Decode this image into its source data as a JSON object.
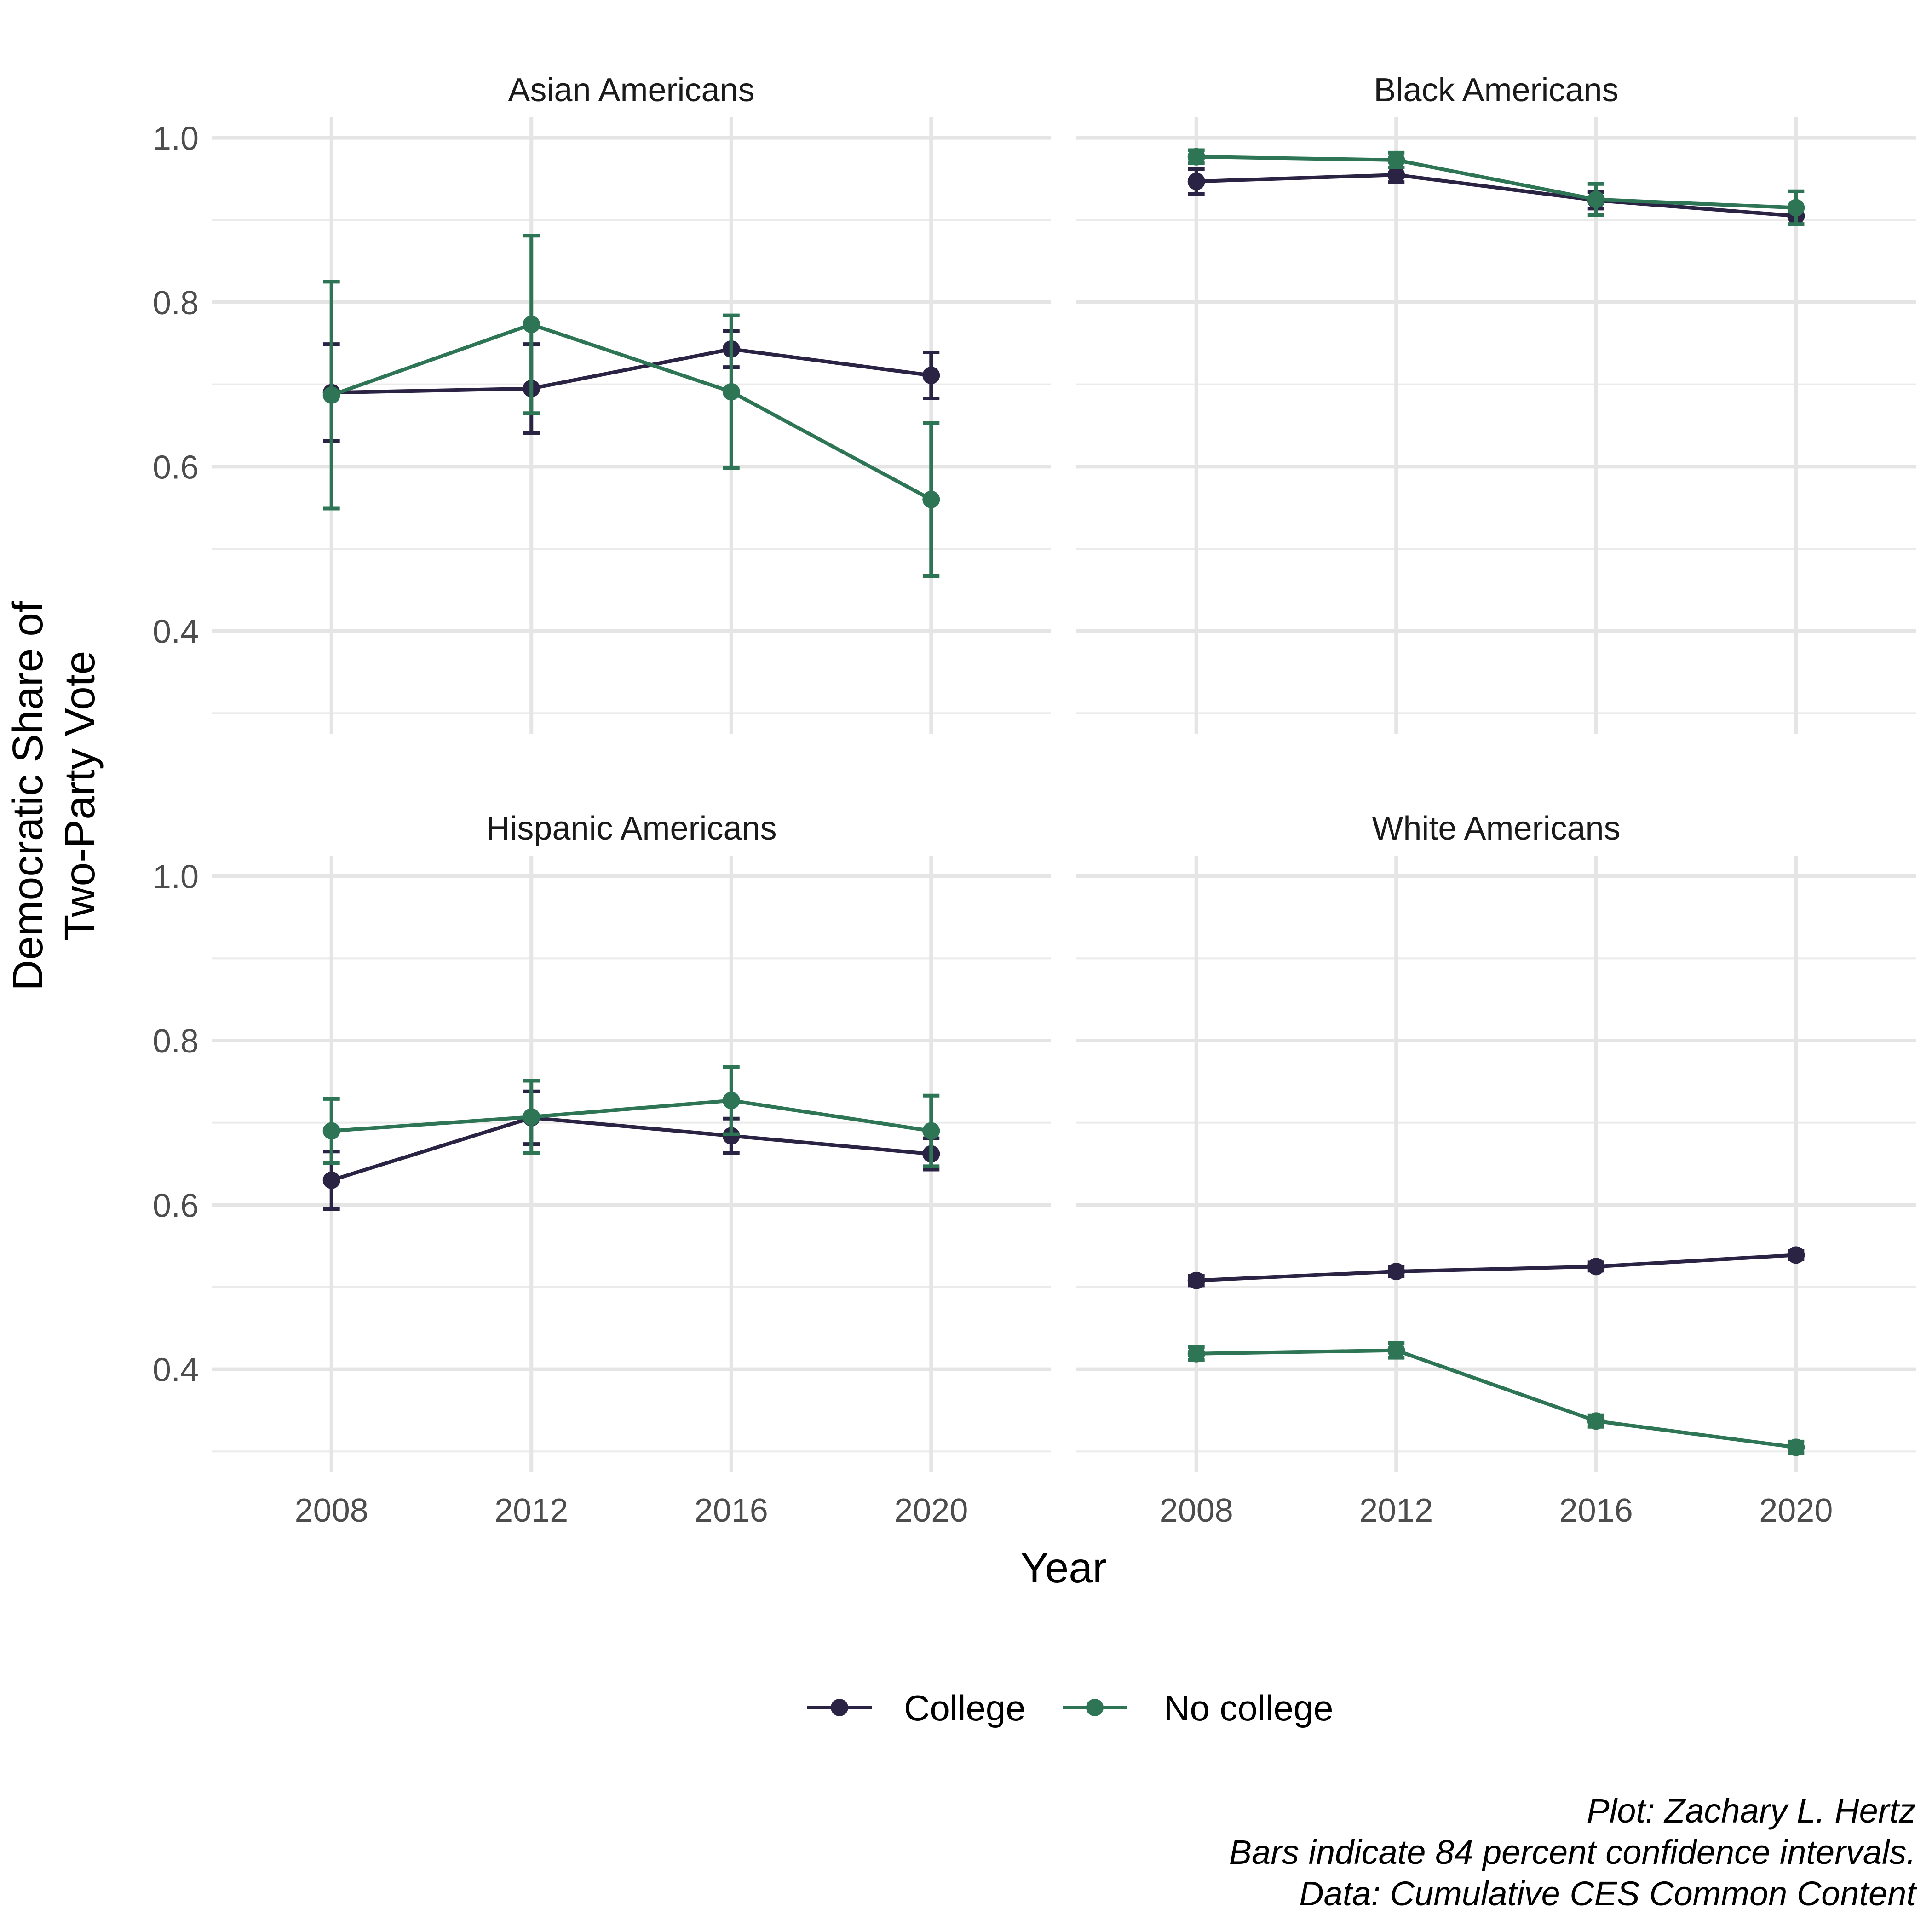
{
  "chart_data": {
    "type": "line",
    "facets": [
      "Asian Americans",
      "Black Americans",
      "Hispanic Americans",
      "White Americans"
    ],
    "x": [
      2008,
      2012,
      2016,
      2020
    ],
    "x_tick_labels": [
      "2008",
      "2012",
      "2016",
      "2020"
    ],
    "y_tick_labels": [
      "0.4",
      "0.6",
      "0.8",
      "1.0"
    ],
    "y_ticks": [
      0.4,
      0.6,
      0.8,
      1.0
    ],
    "xlim": [
      2005.6,
      2022.4
    ],
    "ylim": [
      0.275,
      1.025
    ],
    "xlabel": "Year",
    "ylabel_lines": [
      "Democratic Share of",
      "Two-Party Vote"
    ],
    "grid": true,
    "legend_position": "bottom",
    "series": [
      {
        "name": "College",
        "color": "#2b2344",
        "panels": {
          "Asian Americans": {
            "values": [
              0.69,
              0.695,
              0.743,
              0.711
            ],
            "lower": [
              0.631,
              0.641,
              0.721,
              0.683
            ],
            "upper": [
              0.749,
              0.749,
              0.765,
              0.739
            ]
          },
          "Black Americans": {
            "values": [
              0.947,
              0.955,
              0.924,
              0.905
            ],
            "lower": [
              0.932,
              0.946,
              0.914,
              0.895
            ],
            "upper": [
              0.962,
              0.964,
              0.934,
              0.915
            ]
          },
          "Hispanic Americans": {
            "values": [
              0.63,
              0.706,
              0.684,
              0.662
            ],
            "lower": [
              0.595,
              0.674,
              0.663,
              0.643
            ],
            "upper": [
              0.665,
              0.738,
              0.705,
              0.681
            ]
          },
          "White Americans": {
            "values": [
              0.508,
              0.519,
              0.525,
              0.539
            ],
            "lower": [
              0.502,
              0.513,
              0.52,
              0.534
            ],
            "upper": [
              0.514,
              0.525,
              0.53,
              0.544
            ]
          }
        }
      },
      {
        "name": "No college",
        "color": "#2e7556",
        "panels": {
          "Asian Americans": {
            "values": [
              0.687,
              0.773,
              0.691,
              0.56
            ],
            "lower": [
              0.549,
              0.665,
              0.598,
              0.467
            ],
            "upper": [
              0.825,
              0.881,
              0.784,
              0.653
            ]
          },
          "Black Americans": {
            "values": [
              0.977,
              0.973,
              0.925,
              0.915
            ],
            "lower": [
              0.969,
              0.964,
              0.906,
              0.895
            ],
            "upper": [
              0.985,
              0.982,
              0.944,
              0.935
            ]
          },
          "Hispanic Americans": {
            "values": [
              0.69,
              0.707,
              0.727,
              0.69
            ],
            "lower": [
              0.651,
              0.663,
              0.686,
              0.647
            ],
            "upper": [
              0.729,
              0.751,
              0.768,
              0.733
            ]
          },
          "White Americans": {
            "values": [
              0.419,
              0.423,
              0.337,
              0.305
            ],
            "lower": [
              0.411,
              0.414,
              0.33,
              0.298
            ],
            "upper": [
              0.427,
              0.432,
              0.344,
              0.312
            ]
          }
        }
      }
    ]
  },
  "caption_lines": [
    "Plot: Zachary L. Hertz",
    "Bars indicate 84 percent confidence intervals.",
    "Data: Cumulative CES Common Content"
  ]
}
